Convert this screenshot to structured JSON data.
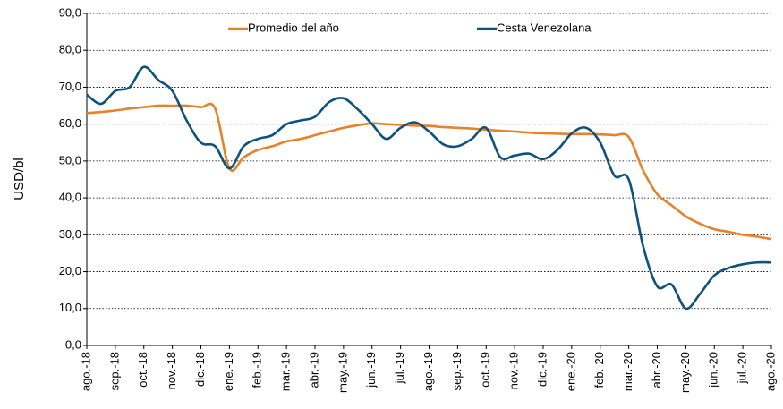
{
  "chart_data": {
    "type": "line",
    "y_label": "USD/bl",
    "categories": [
      "ago.-18",
      null,
      "sep.-18",
      null,
      "oct.-18",
      null,
      "nov.-18",
      null,
      "dic.-18",
      null,
      "ene.-19",
      null,
      "feb.-19",
      null,
      "mar.-19",
      null,
      "abr.-19",
      null,
      "may.-19",
      null,
      "jun.-19",
      null,
      "jul.-19",
      null,
      "ago.-19",
      null,
      "sep.-19",
      null,
      "oct.-19",
      null,
      "nov.-19",
      null,
      "dic.-19",
      null,
      "ene.-20",
      null,
      "feb.-20",
      null,
      "mar.-20",
      null,
      "abr.-20",
      null,
      "may.-20",
      null,
      "jun.-20",
      null,
      "jul.-20",
      null,
      "ago.-20"
    ],
    "series": [
      {
        "name": "Promedio del año",
        "color": "#e5822a",
        "values": [
          63,
          63.3,
          63.7,
          64.2,
          64.6,
          65,
          65,
          65,
          64.6,
          64.2,
          48,
          51,
          53,
          54,
          55.3,
          56,
          57,
          58,
          59,
          59.7,
          60.2,
          60,
          59.8,
          59.6,
          59.5,
          59.2,
          59,
          58.8,
          58.5,
          58.2,
          58,
          57.7,
          57.5,
          57.4,
          57.3,
          57.3,
          57.2,
          57,
          56.5,
          47.5,
          41,
          38,
          35,
          33,
          31.5,
          30.8,
          30,
          29.5,
          28.8
        ]
      },
      {
        "name": "Cesta Venezolana",
        "color": "#0d527e",
        "values": [
          68,
          65.5,
          69,
          70,
          75.5,
          72,
          69,
          61,
          55,
          54,
          48,
          54,
          56,
          57,
          60,
          61,
          62,
          66,
          67,
          64,
          60,
          56,
          59,
          60.5,
          58,
          54.5,
          54,
          56,
          59,
          51,
          51.5,
          52,
          50.5,
          53,
          57.5,
          59,
          55,
          46,
          45,
          27,
          16,
          16.5,
          10,
          14,
          19,
          21,
          22,
          22.5,
          22.5
        ]
      }
    ],
    "ylim": [
      0,
      90
    ],
    "yticks": [
      {
        "value": 0,
        "label": "0,0"
      },
      {
        "value": 10,
        "label": "10,0"
      },
      {
        "value": 20,
        "label": "20,0"
      },
      {
        "value": 30,
        "label": "30,0"
      },
      {
        "value": 40,
        "label": "40,0"
      },
      {
        "value": 50,
        "label": "50,0"
      },
      {
        "value": 60,
        "label": "60,0"
      },
      {
        "value": 70,
        "label": "70,0"
      },
      {
        "value": 80,
        "label": "80,0"
      },
      {
        "value": 90,
        "label": "90,0"
      }
    ],
    "grid": true
  }
}
